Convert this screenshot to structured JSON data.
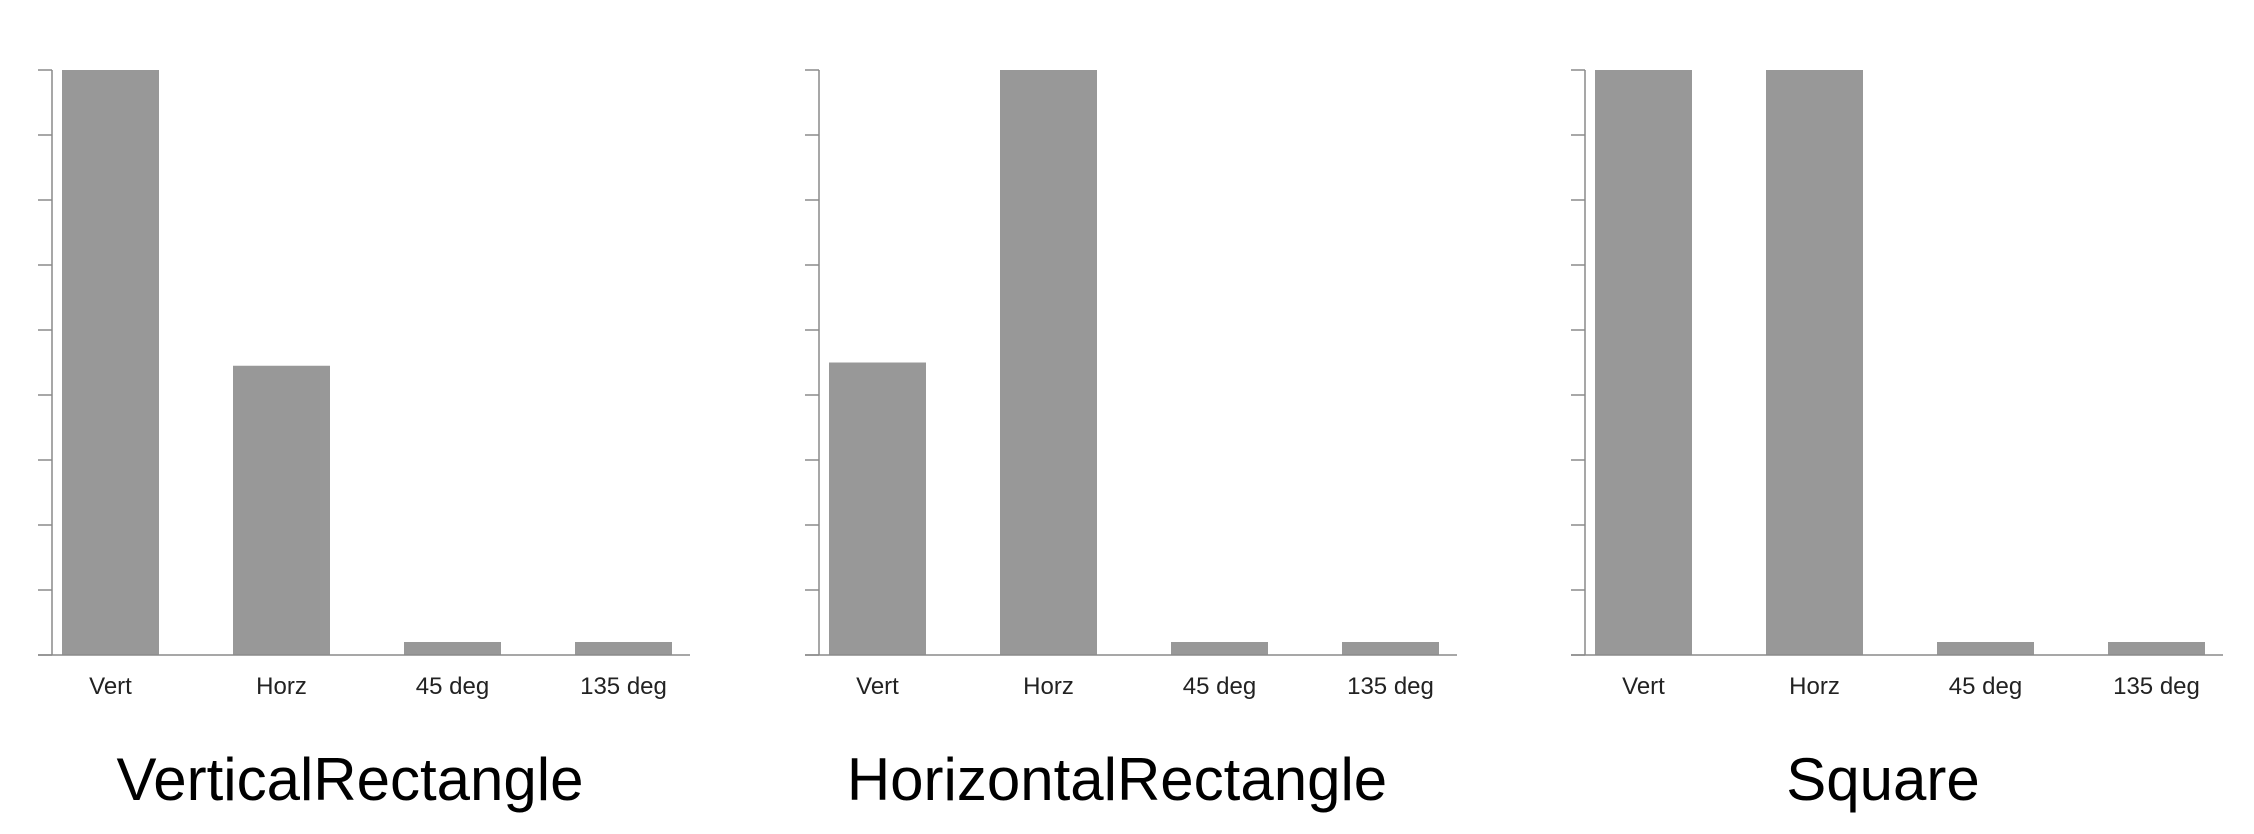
{
  "colors": {
    "bar": "#989898",
    "axis": "#8a8a8a",
    "background": "#ffffff"
  },
  "chart_data": [
    {
      "type": "bar",
      "title": "VerticalRectangle",
      "categories": [
        "Vert",
        "Horz",
        "45 deg",
        "135 deg"
      ],
      "values": [
        9,
        4.45,
        0.2,
        0.2
      ],
      "ylim": [
        0,
        9
      ],
      "y_ticks": 10,
      "grid": false,
      "xlabel": "",
      "ylabel": ""
    },
    {
      "type": "bar",
      "title": "HorizontalRectangle",
      "categories": [
        "Vert",
        "Horz",
        "45 deg",
        "135 deg"
      ],
      "values": [
        4.5,
        9,
        0.2,
        0.2
      ],
      "ylim": [
        0,
        9
      ],
      "y_ticks": 10,
      "grid": false,
      "xlabel": "",
      "ylabel": ""
    },
    {
      "type": "bar",
      "title": "Square",
      "categories": [
        "Vert",
        "Horz",
        "45 deg",
        "135 deg"
      ],
      "values": [
        9,
        9,
        0.2,
        0.2
      ],
      "ylim": [
        0,
        9
      ],
      "y_ticks": 10,
      "grid": false,
      "xlabel": "",
      "ylabel": ""
    }
  ]
}
